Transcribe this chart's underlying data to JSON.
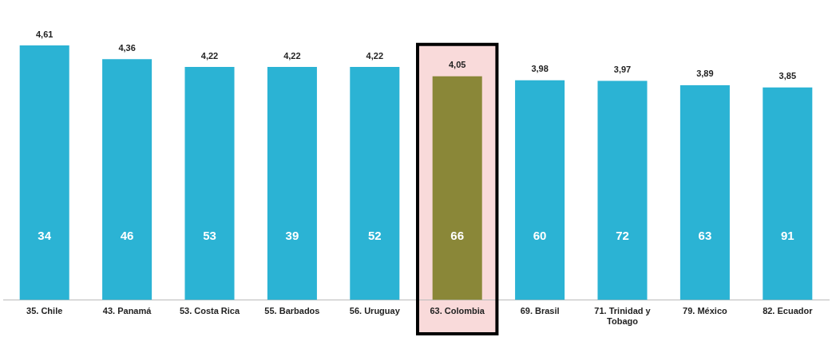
{
  "chart_data": {
    "type": "bar",
    "categories": [
      "35. Chile",
      "43. Panamá",
      "53. Costa Rica",
      "55. Barbados",
      "56. Uruguay",
      "63. Colombia",
      "69. Brasil",
      "71. Trinidad y Tobago",
      "79. México",
      "82. Ecuador"
    ],
    "values": [
      4.61,
      4.36,
      4.22,
      4.22,
      4.22,
      4.05,
      3.98,
      3.97,
      3.89,
      3.85
    ],
    "colors": [
      "#2bb3d4",
      "#2bb3d4",
      "#2bb3d4",
      "#2bb3d4",
      "#2bb3d4",
      "#8a8738",
      "#2bb3d4",
      "#2bb3d4",
      "#2bb3d4",
      "#2bb3d4"
    ],
    "value_labels": [
      "4,61",
      "4,36",
      "4,22",
      "4,22",
      "4,22",
      "4,05",
      "3,98",
      "3,97",
      "3,89",
      "3,85"
    ],
    "tick_labels": "x",
    "grid": false,
    "legend": false,
    "bands": [
      {
        "axis": "x",
        "from": "63. Colombia",
        "to": "63. Colombia",
        "color": "#f9dada"
      }
    ],
    "annotations": [
      "34",
      "46",
      "53",
      "39",
      "52",
      "66",
      "60",
      "72",
      "63",
      "91"
    ]
  }
}
